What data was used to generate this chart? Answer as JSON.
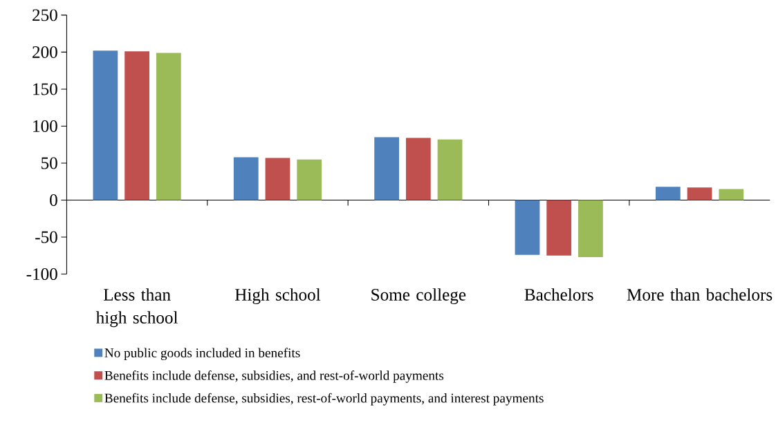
{
  "chart_data": {
    "type": "bar",
    "categories": [
      "Less than high school",
      "High school",
      "Some college",
      "Bachelors",
      "More than bachelors"
    ],
    "series": [
      {
        "name": "No public goods included in benefits",
        "color": "#4f81bd",
        "values": [
          202,
          58,
          85,
          -74,
          18
        ]
      },
      {
        "name": "Benefits include defense, subsidies, and rest-of-world payments",
        "color": "#c0504d",
        "values": [
          201,
          57,
          84,
          -75,
          17
        ]
      },
      {
        "name": "Benefits include defense, subsidies, rest-of-world payments, and interest payments",
        "color": "#9bbb59",
        "values": [
          199,
          55,
          82,
          -77,
          15
        ]
      }
    ],
    "ylim": [
      -100,
      250
    ],
    "yticks": [
      -100,
      -50,
      0,
      50,
      100,
      150,
      200,
      250
    ],
    "legend": "bottom"
  }
}
